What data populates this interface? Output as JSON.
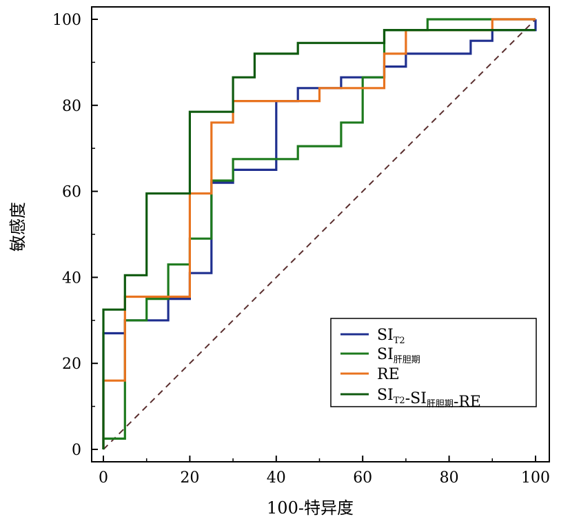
{
  "chart_data": {
    "type": "line",
    "title": "",
    "xlabel": "100-特异度",
    "ylabel": "敏感度",
    "xlim": [
      0,
      100
    ],
    "ylim": [
      0,
      100
    ],
    "xticks": [
      "0",
      "20",
      "40",
      "60",
      "80",
      "100"
    ],
    "yticks": [
      "0",
      "20",
      "40",
      "60",
      "80",
      "100"
    ],
    "grid": false,
    "legend_position": "bottom-right",
    "reference_line": {
      "style": "dashed",
      "color": "#5a2e2e",
      "from": [
        0,
        0
      ],
      "to": [
        100,
        100
      ]
    },
    "series": [
      {
        "name": "SI",
        "name_sub": "T2",
        "color": "#1f2f8f",
        "x": [
          0,
          0,
          5,
          5,
          15,
          15,
          20,
          20,
          25,
          25,
          30,
          30,
          40,
          40,
          45,
          45,
          55,
          55,
          65,
          65,
          70,
          70,
          85,
          85,
          90,
          90,
          100,
          100
        ],
        "y": [
          0,
          27,
          27,
          30,
          30,
          35,
          35,
          41,
          41,
          62,
          62,
          65,
          65,
          81,
          81,
          84,
          84,
          86.5,
          86.5,
          89,
          89,
          92,
          92,
          95,
          95,
          97.5,
          97.5,
          100
        ]
      },
      {
        "name": "SI",
        "name_sub": "肝胆期",
        "color": "#1d7a1d",
        "x": [
          0,
          0,
          5,
          5,
          10,
          10,
          15,
          15,
          20,
          20,
          25,
          25,
          30,
          30,
          45,
          45,
          55,
          55,
          60,
          60,
          65,
          65,
          75,
          75,
          100
        ],
        "y": [
          0,
          2.5,
          2.5,
          30,
          30,
          35,
          35,
          43,
          43,
          49,
          49,
          62.5,
          62.5,
          67.5,
          67.5,
          70.5,
          70.5,
          76,
          76,
          86.5,
          86.5,
          97.5,
          97.5,
          100,
          100
        ]
      },
      {
        "name": "RE",
        "name_sub": "",
        "color": "#e8731f",
        "x": [
          0,
          0,
          5,
          5,
          20,
          20,
          25,
          25,
          30,
          30,
          50,
          50,
          65,
          65,
          70,
          70,
          90,
          90,
          100
        ],
        "y": [
          0,
          16,
          16,
          35.5,
          35.5,
          59.5,
          59.5,
          76,
          76,
          81,
          81,
          84,
          84,
          92,
          92,
          97.5,
          97.5,
          100,
          100
        ]
      },
      {
        "name": "SI",
        "name_sub": "T2",
        "name_rest": "-SI",
        "name_sub2": "肝胆期",
        "name_end": "-RE",
        "color": "#0f5a0f",
        "x": [
          0,
          0,
          5,
          5,
          10,
          10,
          20,
          20,
          30,
          30,
          35,
          35,
          45,
          45,
          65,
          65,
          100
        ],
        "y": [
          0,
          32.5,
          32.5,
          40.5,
          40.5,
          59.5,
          59.5,
          78.5,
          78.5,
          86.5,
          86.5,
          92,
          92,
          94.5,
          94.5,
          97.5,
          97.5
        ]
      }
    ]
  }
}
